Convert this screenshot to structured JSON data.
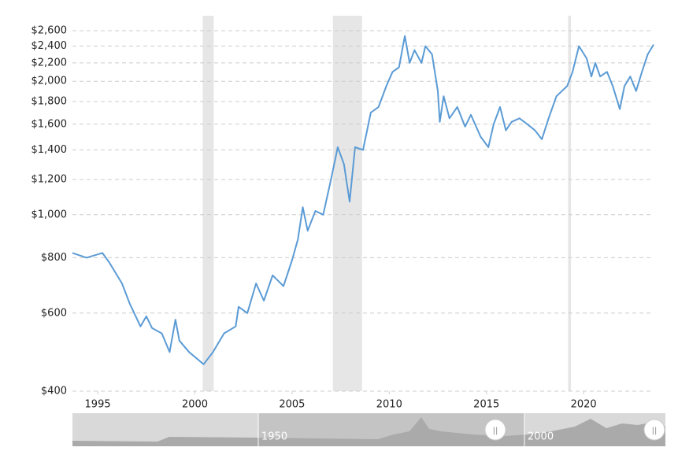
{
  "chart_data": {
    "type": "line",
    "log_scale": true,
    "grid": true,
    "xlim": [
      1993.7,
      2023.6
    ],
    "xticks": [
      1995,
      2000,
      2005,
      2010,
      2015,
      2020
    ],
    "ylim": [
      400,
      2600
    ],
    "yticks": [
      {
        "value": 400,
        "label": "$400"
      },
      {
        "value": 600,
        "label": "$600"
      },
      {
        "value": 800,
        "label": "$800"
      },
      {
        "value": 1000,
        "label": "$1,000"
      },
      {
        "value": 1200,
        "label": "$1,200"
      },
      {
        "value": 1400,
        "label": "$1,400"
      },
      {
        "value": 1600,
        "label": "$1,600"
      },
      {
        "value": 1800,
        "label": "$1,800"
      },
      {
        "value": 2000,
        "label": "$2,000"
      },
      {
        "value": 2200,
        "label": "$2,200"
      },
      {
        "value": 2400,
        "label": "$2,400"
      },
      {
        "value": 2600,
        "label": "$2,600"
      }
    ],
    "shaded_ranges": [
      [
        2000.4,
        2000.97
      ],
      [
        2007.1,
        2008.6
      ],
      [
        2019.2,
        2019.35
      ]
    ],
    "shade_color": "#e6e6e6",
    "navigator_labels": [
      "1950",
      "2000"
    ],
    "x": [
      1993.7,
      1994.43,
      1995.24,
      1995.6,
      1996.25,
      1996.65,
      1997.2,
      1997.5,
      1997.8,
      1998.3,
      1998.7,
      1999.0,
      1999.2,
      1999.7,
      2000.45,
      2000.93,
      2001.5,
      2002.1,
      2002.25,
      2002.7,
      2003.15,
      2003.55,
      2004.0,
      2004.56,
      2005.0,
      2005.3,
      2005.55,
      2005.8,
      2006.2,
      2006.6,
      2007.0,
      2007.35,
      2007.67,
      2007.96,
      2008.24,
      2008.65,
      2009.05,
      2009.45,
      2009.85,
      2010.17,
      2010.5,
      2010.8,
      2011.05,
      2011.3,
      2011.66,
      2011.86,
      2012.2,
      2012.5,
      2012.6,
      2012.8,
      2013.1,
      2013.5,
      2013.9,
      2014.2,
      2014.7,
      2015.1,
      2015.37,
      2015.7,
      2016.0,
      2016.3,
      2016.7,
      2017.1,
      2017.5,
      2017.85,
      2018.2,
      2018.6,
      2019.15,
      2019.43,
      2019.76,
      2020.16,
      2020.4,
      2020.6,
      2020.85,
      2021.2,
      2021.5,
      2021.86,
      2022.1,
      2022.4,
      2022.7,
      2023.0,
      2023.3,
      2023.6
    ],
    "series": [
      {
        "color": "#5b9bd5",
        "values": [
          820,
          800,
          820,
          780,
          700,
          630,
          560,
          590,
          555,
          540,
          490,
          580,
          520,
          490,
          460,
          490,
          540,
          560,
          620,
          600,
          700,
          640,
          730,
          690,
          790,
          880,
          1040,
          920,
          1020,
          1000,
          1200,
          1420,
          1300,
          1070,
          1420,
          1400,
          1700,
          1750,
          1950,
          2100,
          2150,
          2530,
          2200,
          2350,
          2200,
          2400,
          2300,
          1900,
          1620,
          1850,
          1650,
          1750,
          1580,
          1680,
          1500,
          1420,
          1600,
          1750,
          1550,
          1620,
          1650,
          1600,
          1550,
          1480,
          1650,
          1850,
          1950,
          2100,
          2400,
          2250,
          2050,
          2200,
          2050,
          2100,
          1950,
          1730,
          1950,
          2050,
          1900,
          2100,
          2300,
          2420
        ]
      }
    ]
  }
}
